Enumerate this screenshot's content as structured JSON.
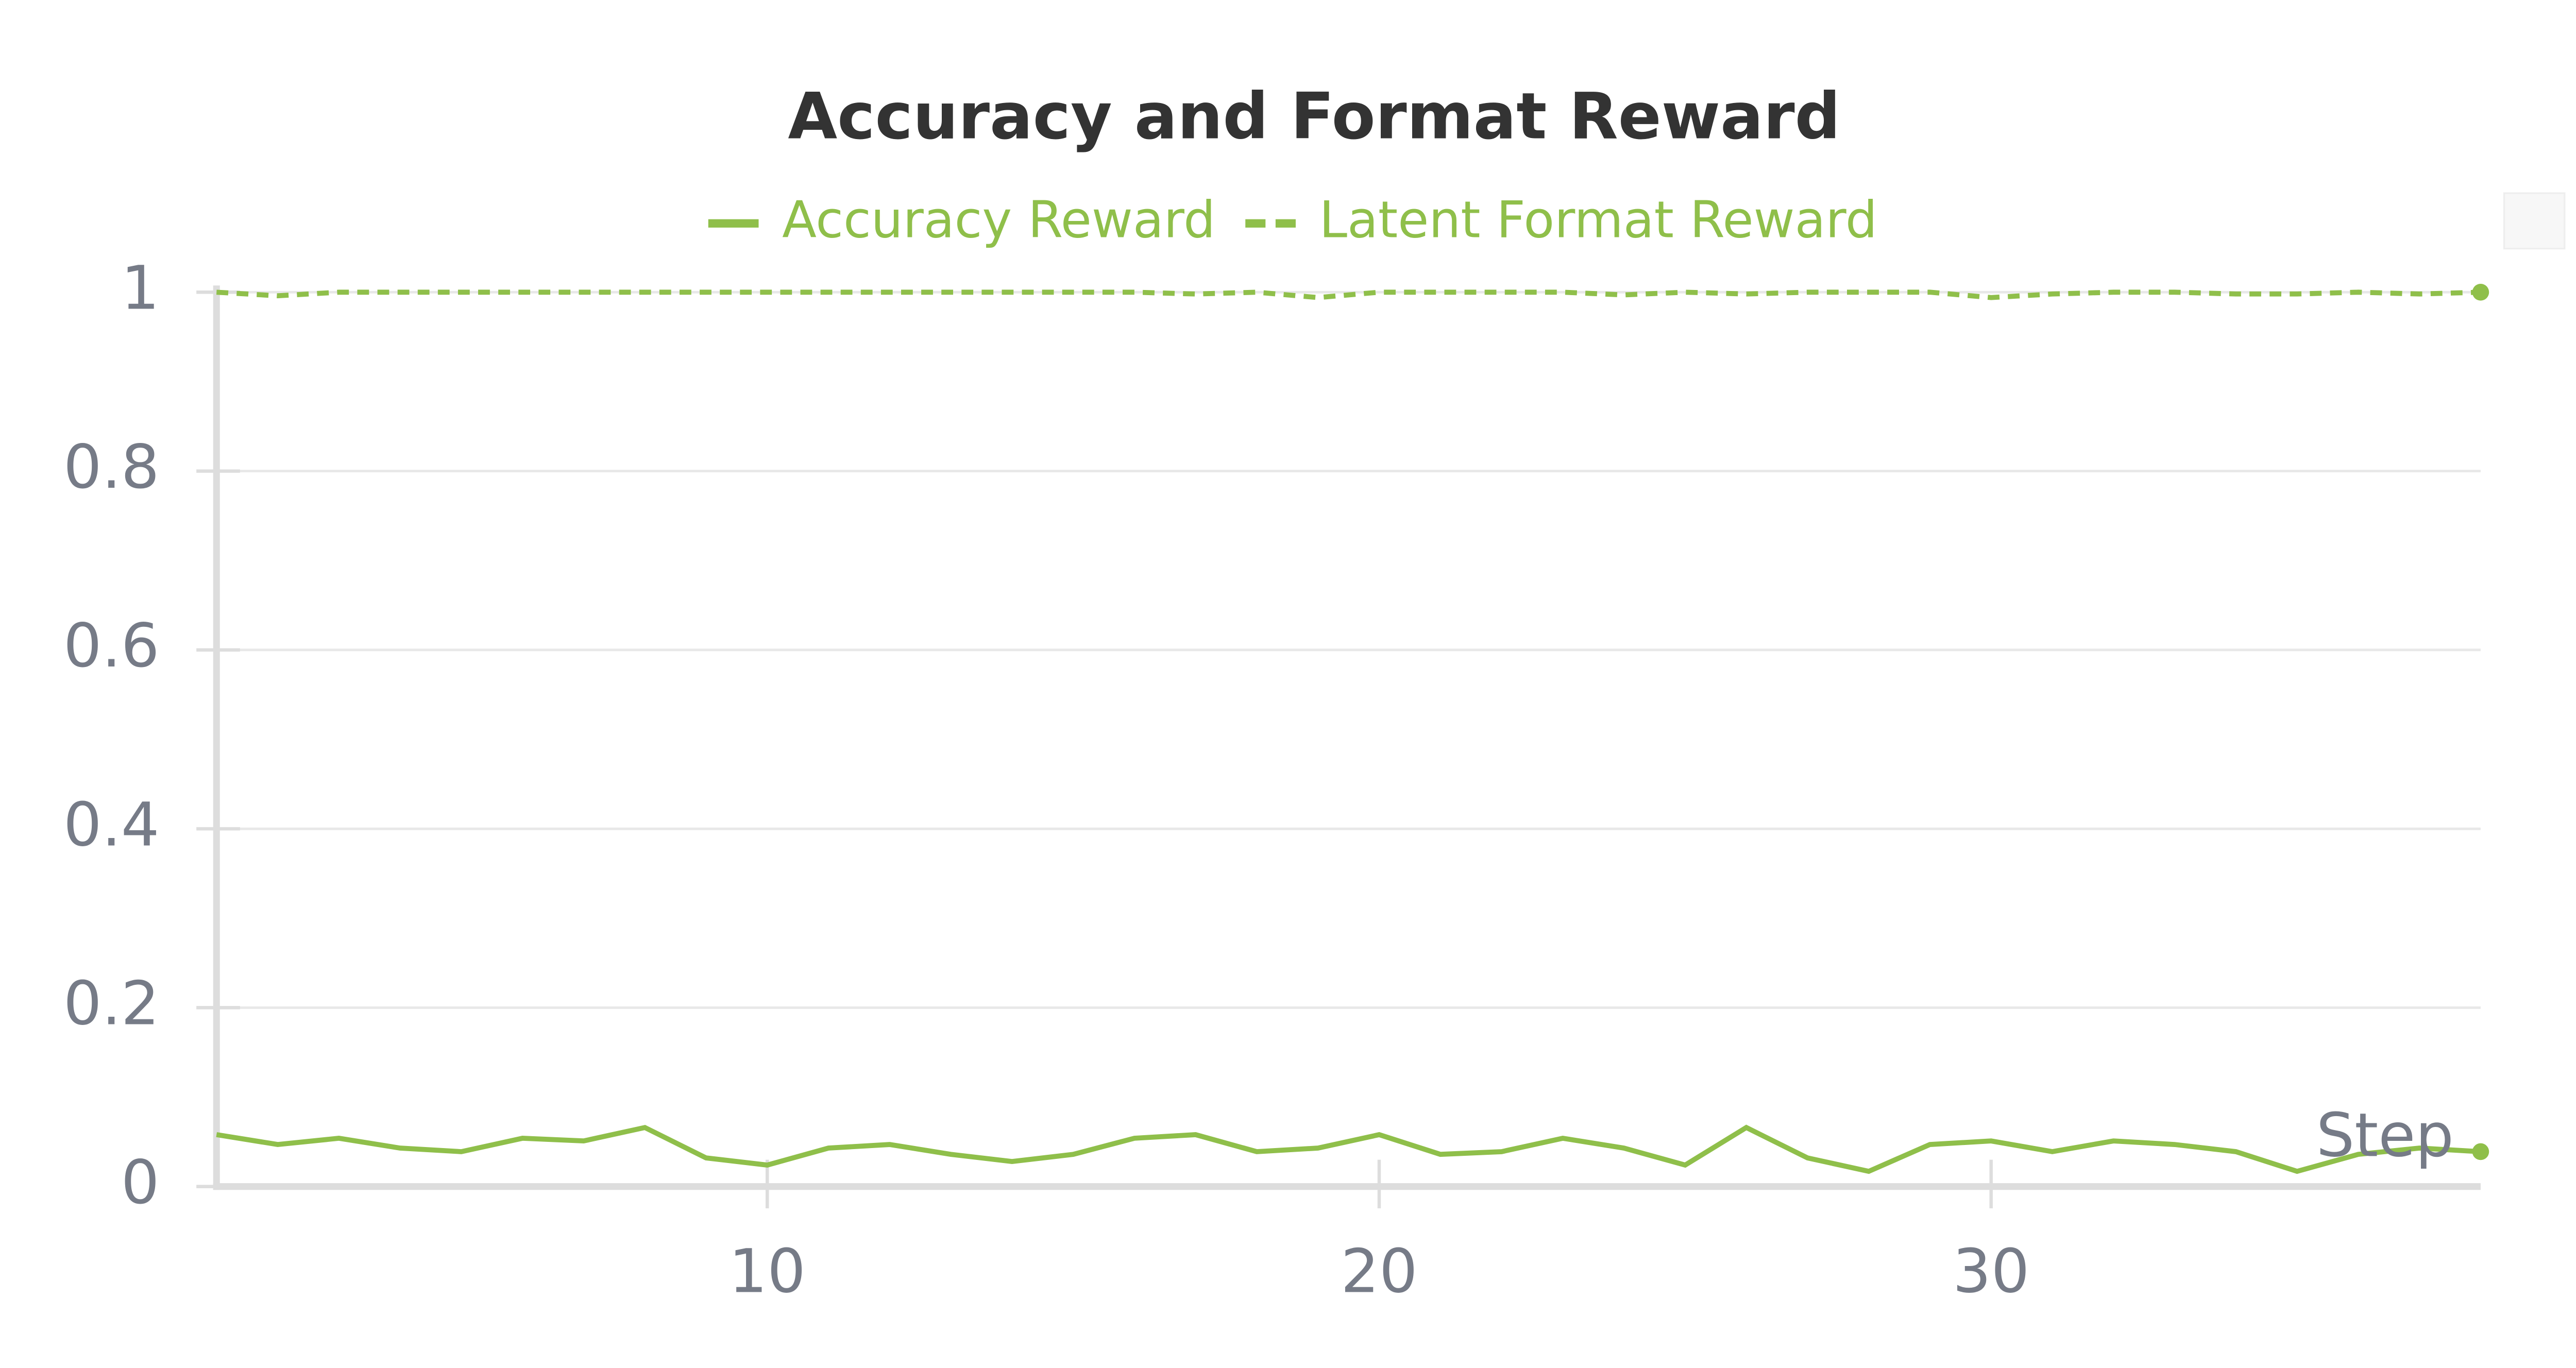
{
  "chart_data": {
    "type": "line",
    "title": "Accuracy and Format Reward",
    "x_label": "Step",
    "x": [
      1,
      2,
      3,
      4,
      5,
      6,
      7,
      8,
      9,
      10,
      11,
      12,
      13,
      14,
      15,
      16,
      17,
      18,
      19,
      20,
      21,
      22,
      23,
      24,
      25,
      26,
      27,
      28,
      29,
      30,
      31,
      32,
      33,
      34,
      35,
      36,
      37,
      38
    ],
    "series": [
      {
        "name": "Accuracy Reward",
        "color": "#8fbf4a",
        "style": "solid",
        "values": [
          0.058,
          0.047,
          0.054,
          0.043,
          0.039,
          0.054,
          0.051,
          0.066,
          0.032,
          0.024,
          0.043,
          0.047,
          0.036,
          0.028,
          0.036,
          0.054,
          0.058,
          0.039,
          0.043,
          0.058,
          0.036,
          0.039,
          0.054,
          0.043,
          0.024,
          0.066,
          0.032,
          0.017,
          0.047,
          0.051,
          0.039,
          0.051,
          0.047,
          0.039,
          0.017,
          0.036,
          0.043,
          0.039
        ]
      },
      {
        "name": "Latent Format Reward",
        "color": "#8fbf4a",
        "style": "dashed",
        "values": [
          1,
          0.996,
          1,
          1,
          1,
          1,
          1,
          1,
          1,
          1,
          1,
          1,
          1,
          1,
          1,
          1,
          0.998,
          1,
          0.994,
          1,
          1,
          1,
          1,
          0.997,
          1,
          0.998,
          1,
          1,
          1,
          0.994,
          0.998,
          1,
          1,
          0.998,
          0.998,
          1,
          0.998,
          1
        ]
      }
    ],
    "xlim": [
      1,
      38
    ],
    "xticks": [
      10,
      20,
      30
    ],
    "ylim": [
      0,
      1
    ],
    "yticks": [
      0,
      0.2,
      0.4,
      0.6,
      0.8,
      1
    ],
    "grid": true
  }
}
